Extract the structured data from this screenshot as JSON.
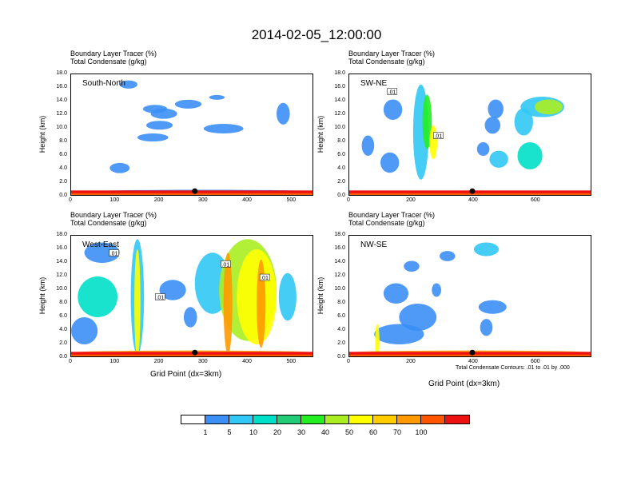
{
  "title": "2014-02-05_12:00:00",
  "panel_header_line1": "Boundary Layer Tracer   (%)",
  "panel_header_line2": "Total Condensate   (g/kg)",
  "y_axis_label": "Height (km)",
  "x_axis_label": "Grid Point (dx=3km)",
  "contour_note": "Total Condensate Contours: .01 to .01 by .000",
  "colorbar": {
    "colors": [
      "#ffffff",
      "#3b8ff5",
      "#31c8f5",
      "#00e0c8",
      "#22cc77",
      "#22ee22",
      "#aaee22",
      "#ffff00",
      "#ffcc00",
      "#ff9900",
      "#ff5500",
      "#ee1111"
    ],
    "labels": [
      "1",
      "5",
      "10",
      "20",
      "30",
      "40",
      "50",
      "60",
      "70",
      "100"
    ]
  },
  "chart_data": [
    {
      "type": "heatmap",
      "panel": "South-North",
      "title": "South-North",
      "ylabel": "Height (km)",
      "ylim": [
        0,
        18
      ],
      "yticks": [
        "0.0",
        "2.0",
        "4.0",
        "6.0",
        "8.0",
        "10.0",
        "12.0",
        "14.0",
        "16.0",
        "18.0"
      ],
      "xlim": [
        0,
        550
      ],
      "xticks": [
        "0",
        "100",
        "200",
        "300",
        "400",
        "500"
      ],
      "marker_x": 280,
      "contour_labels": []
    },
    {
      "type": "heatmap",
      "panel": "SW-NE",
      "title": "SW-NE",
      "ylabel": "Height (km)",
      "ylim": [
        0,
        18
      ],
      "yticks": [
        "0.0",
        "2.0",
        "4.0",
        "6.0",
        "8.0",
        "10.0",
        "12.0",
        "14.0",
        "16.0",
        "18.0"
      ],
      "xlim": [
        0,
        780
      ],
      "xticks": [
        "0",
        "200",
        "400",
        "600"
      ],
      "marker_x": 395,
      "contour_labels": [
        ".01",
        ".01"
      ]
    },
    {
      "type": "heatmap",
      "panel": "West-East",
      "title": "West-East",
      "ylabel": "Height (km)",
      "ylim": [
        0,
        18
      ],
      "yticks": [
        "0.0",
        "2.0",
        "4.0",
        "6.0",
        "8.0",
        "10.0",
        "12.0",
        "14.0",
        "16.0",
        "18.0"
      ],
      "xlim": [
        0,
        550
      ],
      "xticks": [
        "0",
        "100",
        "200",
        "300",
        "400",
        "500"
      ],
      "xlabel": "Grid Point (dx=3km)",
      "marker_x": 280,
      "contour_labels": [
        ".01",
        ".01",
        ".01",
        ".01"
      ]
    },
    {
      "type": "heatmap",
      "panel": "NW-SE",
      "title": "NW-SE",
      "ylabel": "Height (km)",
      "ylim": [
        0,
        18
      ],
      "yticks": [
        "0.0",
        "2.0",
        "4.0",
        "6.0",
        "8.0",
        "10.0",
        "12.0",
        "14.0",
        "16.0",
        "18.0"
      ],
      "xlim": [
        0,
        780
      ],
      "xticks": [
        "0",
        "200",
        "400",
        "600"
      ],
      "xlabel": "Grid Point (dx=3km)",
      "marker_x": 395,
      "contour_labels": []
    }
  ]
}
